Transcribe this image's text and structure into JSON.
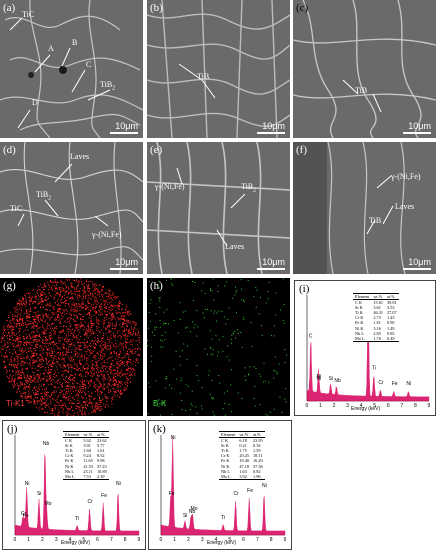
{
  "panels": {
    "a": {
      "label": "(a)",
      "scale": "10μm",
      "ann": [
        "TiC",
        "A",
        "B",
        "C",
        "TiB",
        "2",
        "D"
      ]
    },
    "b": {
      "label": "(b)",
      "scale": "10μm",
      "ann": [
        "TiB"
      ]
    },
    "c": {
      "label": "(c)",
      "scale": "10μm",
      "ann": [
        "TiB"
      ]
    },
    "d": {
      "label": "(d)",
      "scale": "10μm",
      "ann": [
        "Laves",
        "TiB",
        "2",
        "TiC",
        "γ-(Ni,Fe)"
      ]
    },
    "e": {
      "label": "(e)",
      "scale": "10μm",
      "ann": [
        "γ-(Ni,Fe)",
        "TiB",
        "2",
        "Laves"
      ]
    },
    "f": {
      "label": "(f)",
      "scale": "10μm",
      "ann": [
        "γ-(Ni,Fe)",
        "TiB",
        "Laves"
      ]
    },
    "g": {
      "label": "(g)",
      "map": "Ti-K1",
      "color": "#ff2a2a"
    },
    "h": {
      "label": "(h)",
      "map": "B-K",
      "color": "#33cc33"
    },
    "i": {
      "label": "(i)",
      "xaxis": "Energy (keV)",
      "ticks": [
        "0",
        "1",
        "2",
        "3",
        "4",
        "5",
        "6",
        "7",
        "8",
        "9"
      ],
      "peaks": [
        "C",
        "Ni",
        "Si",
        "Ni",
        "Nb",
        "Ti",
        "Cr",
        "Ti",
        "Fe",
        "Ni"
      ],
      "table": {
        "head": [
          "Element",
          "wt.%",
          "at.%"
        ],
        "rows": [
          [
            "C K",
            "15.61",
            "39.81"
          ],
          [
            "Si K",
            "3.61",
            "3.53"
          ],
          [
            "Ti K",
            "46.31",
            "27.07"
          ],
          [
            "Cr K",
            "2.73",
            "1.45"
          ],
          [
            "Fe K",
            "1.81",
            "0.90"
          ],
          [
            "Ni K",
            "3.16",
            "1.49"
          ],
          [
            "Nb L",
            "2.85",
            "0.85"
          ],
          [
            "Mo L",
            "1.76",
            "0.49"
          ]
        ]
      }
    },
    "j": {
      "label": "(j)",
      "xaxis": "Energy (keV)",
      "ticks": [
        "0",
        "1",
        "2",
        "3",
        "4",
        "5",
        "6",
        "7",
        "8",
        "9"
      ],
      "peaks": [
        "Nb",
        "Ni",
        "Si",
        "Cr",
        "Mo",
        "Ti",
        "Fe",
        "Cr",
        "Fe",
        "Ni"
      ],
      "table": {
        "head": [
          "Element",
          "wt.%",
          "at.%"
        ],
        "rows": [
          [
            "C K",
            "5.92",
            "23.62"
          ],
          [
            "Si K",
            "3.91",
            "5.77"
          ],
          [
            "Ti K",
            "1.60",
            "1.61"
          ],
          [
            "Cr K",
            "9.24",
            "8.52"
          ],
          [
            "Fe K",
            "11.65",
            "9.98"
          ],
          [
            "Ni K",
            "41.53",
            "37.23"
          ],
          [
            "Nb L",
            "23.11",
            "10.89"
          ],
          [
            "Mo L",
            "7.53",
            "2.39"
          ]
        ]
      }
    },
    "k": {
      "label": "(k)",
      "xaxis": "Energy (keV)",
      "ticks": [
        "0",
        "1",
        "2",
        "3",
        "4",
        "5",
        "6",
        "7",
        "8",
        "9"
      ],
      "peaks": [
        "Ni",
        "Fe",
        "Si",
        "Mo",
        "Nb",
        "Ti",
        "Cr",
        "Fe",
        "Ni"
      ],
      "table": {
        "head": [
          "Element",
          "wt.%",
          "at.%"
        ],
        "rows": [
          [
            "C K",
            "6.18",
            "23.95"
          ],
          [
            "Si K",
            "0.21",
            "0.34"
          ],
          [
            "Ti K",
            "1.75",
            "1.59"
          ],
          [
            "Cr K",
            "20.25",
            "18.11"
          ],
          [
            "Fe K",
            "19.40",
            "16.20"
          ],
          [
            "Ni K",
            "47.18",
            "37.36"
          ],
          [
            "Nb L",
            "1.63",
            "0.82"
          ],
          [
            "Mo L",
            "3.92",
            "1.96"
          ]
        ]
      }
    }
  },
  "colors": {
    "spectrum": "#d6005a",
    "sem_bg": "#6a6a6a",
    "boundary": "#e6e6e6"
  }
}
